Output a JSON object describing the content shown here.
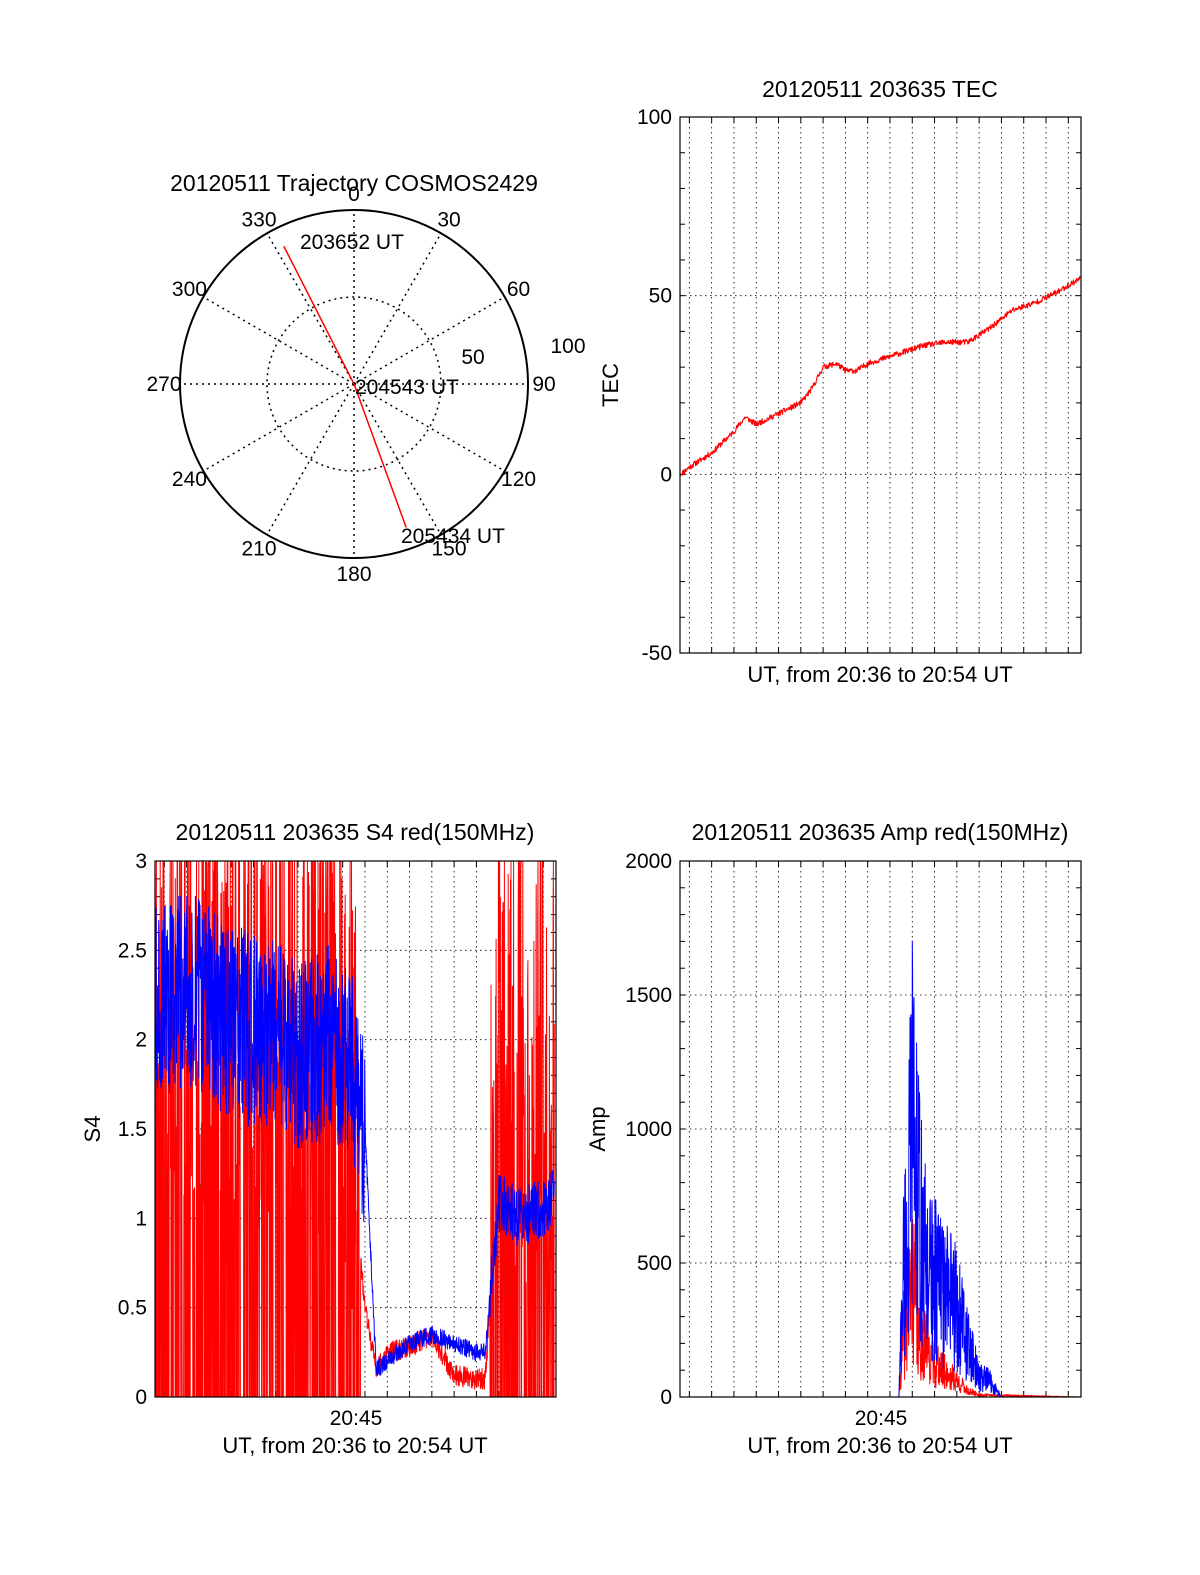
{
  "colors": {
    "red": "#ff0000",
    "blue": "#0000ff",
    "axis": "#000000",
    "grid": "#000000"
  },
  "chart_data": [
    {
      "type": "polar",
      "title": "20120511 Trajectory COSMOS2429",
      "azimuth_labels": [
        "0",
        "30",
        "60",
        "90",
        "120",
        "150",
        "180",
        "210",
        "240",
        "270",
        "300",
        "330"
      ],
      "radius_labels": [
        "50",
        "100"
      ],
      "series": [
        {
          "color": "#ff0000",
          "points": [
            {
              "az": 333,
              "el": 10
            },
            {
              "az": 180,
              "el": 90
            },
            {
              "az": 160,
              "el": 11
            }
          ]
        }
      ],
      "annotations": [
        "203652 UT",
        "204543 UT",
        "205434 UT"
      ]
    },
    {
      "type": "line",
      "title": "20120511 203635 TEC",
      "xlabel": "UT, from 20:36 to 20:54 UT",
      "ylabel": "TEC",
      "xlim": [
        36.58,
        54.57
      ],
      "ylim": [
        -50,
        100
      ],
      "yticks": [
        "-50",
        "0",
        "50",
        "100"
      ],
      "grid": true,
      "series": [
        {
          "color": "#ff0000",
          "x": [
            36.6,
            37.0,
            38.0,
            39.0,
            39.5,
            40.0,
            41.0,
            42.0,
            42.5,
            43.0,
            43.6,
            44.0,
            44.5,
            45.0,
            45.5,
            46.5,
            47.5,
            48.5,
            49.5,
            50.5,
            51.5,
            52.5,
            53.5,
            54.57
          ],
          "y": [
            0,
            2,
            6,
            12,
            16,
            14,
            17,
            20,
            24,
            30,
            31,
            29,
            29,
            31,
            32,
            34,
            36,
            37,
            37,
            41,
            46,
            48,
            51,
            55
          ]
        }
      ]
    },
    {
      "type": "line",
      "title": "20120511 203635 S4 red(150MHz)",
      "xlabel": "UT, from 20:36 to 20:54 UT",
      "ylabel": "S4",
      "xticks": [
        "20:45"
      ],
      "xlim": [
        36.58,
        54.57
      ],
      "ylim": [
        0,
        3
      ],
      "yticks": [
        "0",
        "0.5",
        "1",
        "1.5",
        "2",
        "2.5",
        "3"
      ],
      "grid": true,
      "series": [
        {
          "color": "#ff0000",
          "x": [
            36.6,
            38.0,
            40.0,
            42.0,
            43.5,
            44.5,
            45.0,
            45.5,
            46.0,
            46.5,
            47.0,
            48.0,
            49.0,
            50.0,
            51.0,
            51.4,
            52.0,
            53.0,
            54.5
          ],
          "y": [
            2.0,
            1.9,
            1.9,
            1.8,
            1.6,
            1.7,
            1.5,
            1.2,
            0.5,
            0.15,
            0.25,
            0.28,
            0.35,
            0.12,
            0.1,
            0.1,
            1.4,
            1.5,
            1.4
          ]
        },
        {
          "color": "#0000ff",
          "x": [
            36.6,
            38.0,
            40.0,
            42.0,
            43.5,
            44.5,
            45.0,
            45.5,
            46.0,
            46.5,
            47.0,
            48.0,
            49.0,
            50.0,
            51.0,
            51.4,
            52.0,
            53.0,
            54.5
          ],
          "y": [
            2.2,
            2.3,
            2.1,
            2.0,
            1.9,
            2.0,
            1.9,
            1.8,
            1.5,
            0.15,
            0.2,
            0.3,
            0.35,
            0.3,
            0.25,
            0.25,
            1.1,
            1.0,
            1.1
          ]
        }
      ]
    },
    {
      "type": "line",
      "title": "20120511 203635 Amp red(150MHz)",
      "xlabel": "UT, from 20:36 to 20:54 UT",
      "ylabel": "Amp",
      "xticks": [
        "20:45"
      ],
      "xlim": [
        36.58,
        54.57
      ],
      "ylim": [
        0,
        2000
      ],
      "yticks": [
        "0",
        "500",
        "1000",
        "1500",
        "2000"
      ],
      "grid": true,
      "series": [
        {
          "color": "#ff0000",
          "x": [
            36.6,
            46.4,
            46.6,
            46.8,
            47.0,
            47.3,
            47.5,
            48.0,
            48.5,
            49.0,
            49.5,
            50.0,
            54.57
          ],
          "y": [
            0,
            0,
            300,
            380,
            600,
            250,
            300,
            160,
            120,
            80,
            30,
            10,
            0
          ]
        },
        {
          "color": "#0000ff",
          "x": [
            36.6,
            46.4,
            46.6,
            46.8,
            47.0,
            47.2,
            47.5,
            48.0,
            48.5,
            49.0,
            49.5,
            50.0,
            50.5,
            51.0,
            54.57
          ],
          "y": [
            0,
            0,
            650,
            800,
            1460,
            1050,
            700,
            600,
            500,
            450,
            250,
            100,
            80,
            0,
            0
          ]
        }
      ]
    }
  ]
}
